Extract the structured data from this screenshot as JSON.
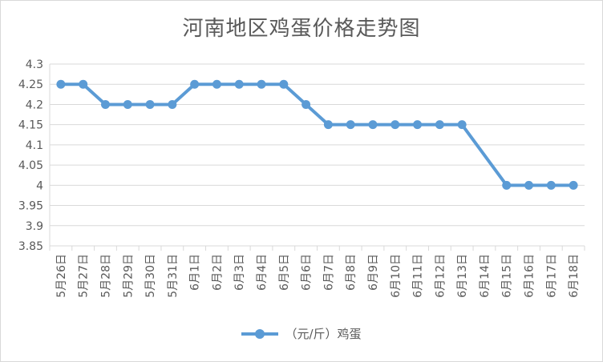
{
  "chart_data": {
    "type": "line",
    "title": "河南地区鸡蛋价格走势图",
    "categories": [
      "5月26日",
      "5月27日",
      "5月28日",
      "5月29日",
      "5月30日",
      "5月31日",
      "6月1日",
      "6月2日",
      "6月3日",
      "6月4日",
      "6月5日",
      "6月6日",
      "6月7日",
      "6月8日",
      "6月9日",
      "6月10日",
      "6月11日",
      "6月12日",
      "6月13日",
      "6月14日",
      "6月15日",
      "6月16日",
      "6月17日",
      "6月18日"
    ],
    "series": [
      {
        "name": "（元/斤）鸡蛋",
        "color": "#5B9BD5",
        "values": [
          4.25,
          4.25,
          4.2,
          4.2,
          4.2,
          4.2,
          4.25,
          4.25,
          4.25,
          4.25,
          4.25,
          4.2,
          4.15,
          4.15,
          4.15,
          4.15,
          4.15,
          4.15,
          4.15,
          null,
          4.0,
          4.0,
          4.0,
          4.0
        ]
      }
    ],
    "yticks": [
      "3.85",
      "3.9",
      "3.95",
      "4",
      "4.05",
      "4.1",
      "4.15",
      "4.2",
      "4.25",
      "4.3"
    ],
    "ylim": [
      3.85,
      4.3
    ],
    "grid": true,
    "legend": "bottom"
  }
}
